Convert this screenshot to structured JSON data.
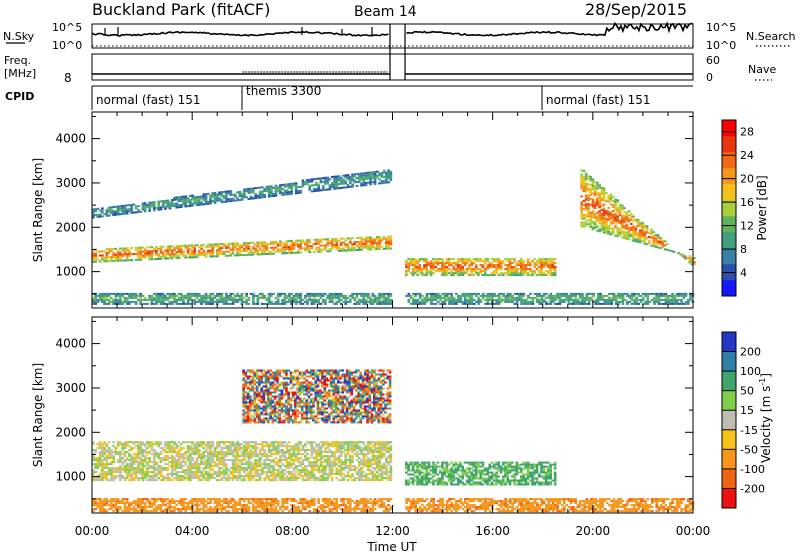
{
  "header": {
    "title": "Buckland Park (fitACF)",
    "beam": "Beam 14",
    "date": "28/Sep/2015"
  },
  "status": {
    "nsky_label": "N.Sky",
    "nsky_ticks": [
      "10^5",
      "10^0"
    ],
    "nsearch_label": "N.Search",
    "nsearch_ticks": [
      "10^5",
      "10^0"
    ],
    "freq_label": "Freq.",
    "freq_unit": "[MHz]",
    "freq_tick": "8",
    "nave_label": "Nave",
    "nave_ticks": [
      "60",
      "0"
    ],
    "cpid_label": "CPID",
    "programs": [
      {
        "name": "normal (fast) 151",
        "start_hour": 0
      },
      {
        "name": "themis 3300",
        "start_hour": 6
      },
      {
        "name": "normal (fast) 151",
        "start_hour": 18
      }
    ],
    "data_gap_hours": [
      11.9,
      12.5
    ]
  },
  "chart_data": [
    {
      "type": "heatmap",
      "panel": "power",
      "xlabel": "Time UT",
      "ylabel": "Slant Range [km]",
      "xlim": [
        0,
        24
      ],
      "ylim": [
        180,
        4600
      ],
      "xticks": [
        "00:00",
        "04:00",
        "08:00",
        "12:00",
        "16:00",
        "20:00",
        "00:00"
      ],
      "yticks": [
        1000,
        2000,
        3000,
        4000
      ],
      "colorbar": {
        "label": "Power [dB]",
        "ticks": [
          4,
          8,
          12,
          16,
          20,
          24,
          28
        ],
        "range": [
          0,
          30
        ],
        "colors": [
          "#1515ff",
          "#2a4fa8",
          "#3b7fa4",
          "#3f9f7f",
          "#5fb35a",
          "#a9cf3a",
          "#f2c21a",
          "#f4961b",
          "#f06a16",
          "#e8370f",
          "#ff0000"
        ]
      },
      "bands": [
        {
          "name": "near-range",
          "t": [
            0,
            24
          ],
          "range_km": [
            250,
            500
          ],
          "power_db": 12
        },
        {
          "name": "main E/F",
          "t": [
            0,
            11.9
          ],
          "range_km_start": [
            1200,
            1500
          ],
          "range_km_end": [
            1500,
            1800
          ],
          "power_db": 26
        },
        {
          "name": "upper",
          "t": [
            0,
            11.9
          ],
          "range_km_start": [
            2200,
            2400
          ],
          "range_km_end": [
            3000,
            3300
          ],
          "power_db": 10
        },
        {
          "name": "afternoon",
          "t": [
            12.5,
            18.5
          ],
          "range_km": [
            900,
            1300
          ],
          "power_db": 26
        },
        {
          "name": "evening",
          "t": [
            19.5,
            24
          ],
          "range_km_start": [
            3300,
            2000
          ],
          "range_km_end": [
            1100,
            1300
          ],
          "power_db": 26
        }
      ]
    },
    {
      "type": "heatmap",
      "panel": "velocity",
      "xlabel": "Time UT",
      "ylabel": "Slant Range [km]",
      "xlim": [
        0,
        24
      ],
      "ylim": [
        180,
        4600
      ],
      "xticks": [
        "00:00",
        "04:00",
        "08:00",
        "12:00",
        "16:00",
        "20:00",
        "00:00"
      ],
      "yticks": [
        1000,
        2000,
        3000,
        4000
      ],
      "colorbar": {
        "label": "Velocity [m s^-1]",
        "ticks": [
          200,
          100,
          50,
          15,
          -15,
          -50,
          -100,
          -200
        ],
        "colors": [
          "#2236c8",
          "#2f7fa8",
          "#3fa56c",
          "#7fcf4a",
          "#bdbdb0",
          "#f5c31a",
          "#f6961b",
          "#f06514",
          "#ee1010"
        ]
      },
      "bands": [
        {
          "name": "ground scatter",
          "t": [
            0,
            11.9
          ],
          "range_km": [
            900,
            1800
          ],
          "velocity": 0
        },
        {
          "name": "near-range",
          "t": [
            0,
            24
          ],
          "range_km": [
            200,
            500
          ],
          "velocity": -60
        },
        {
          "name": "ionospheric",
          "t": [
            6,
            11.9
          ],
          "range_km": [
            2200,
            3400
          ],
          "velocity": 0
        },
        {
          "name": "afternoon",
          "t": [
            12.5,
            18.5
          ],
          "range_km": [
            800,
            1300
          ],
          "velocity": 40
        }
      ]
    }
  ],
  "labels": {
    "xlabel": "Time UT",
    "ylabel": "Slant Range [km]",
    "power_cb_label": "Power [dB]",
    "vel_cb_label": "Velocity [m s",
    "vel_cb_sup": "-1",
    "vel_cb_tail": "]"
  }
}
